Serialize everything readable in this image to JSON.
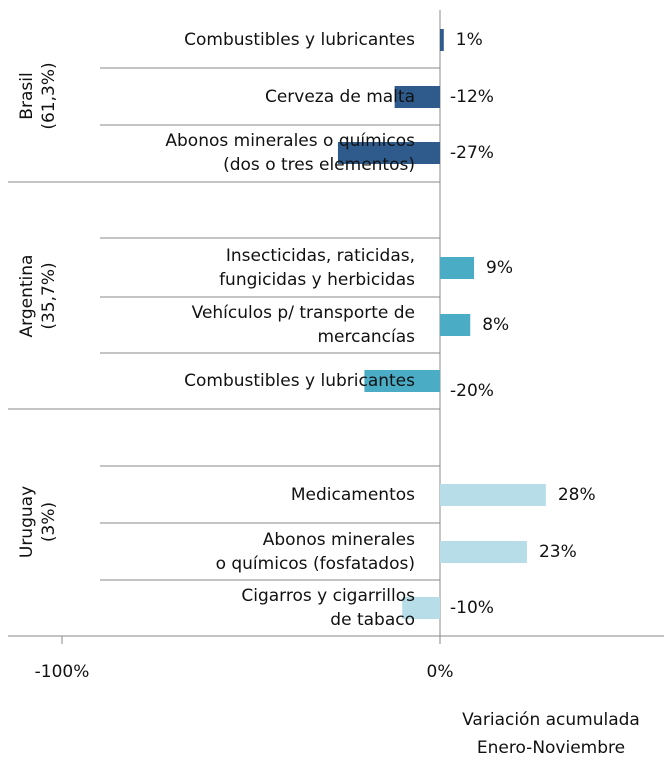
{
  "chart_data": {
    "type": "bar",
    "orientation": "horizontal",
    "xlabel": [
      "Variación acumulada",
      "Enero-Noviembre"
    ],
    "xlim": [
      -100,
      59
    ],
    "xticks": [
      {
        "value": -100,
        "label": "-100%"
      },
      {
        "value": 0,
        "label": "0%"
      }
    ],
    "series": [
      {
        "name": [
          "Brasil",
          "(61,3%)"
        ],
        "color": "#2f5b8c",
        "categories": [
          [
            "Combustibles y lubricantes"
          ],
          [
            "Cerveza de malta"
          ],
          [
            "Abonos minerales o químicos",
            "(dos o tres elementos)"
          ]
        ],
        "values": [
          1,
          -12,
          -27
        ],
        "value_labels": [
          "1%",
          "-12%",
          "-27%"
        ]
      },
      {
        "name": [
          "Argentina",
          "(35,7%)"
        ],
        "color": "#4bacc6",
        "categories": [
          [
            "Insecticidas, raticidas,",
            "fungicidas y herbicidas"
          ],
          [
            "Vehículos p/ transporte de",
            "mercancías"
          ],
          [
            "Combustibles y lubricantes"
          ]
        ],
        "values": [
          9,
          8,
          -20
        ],
        "value_labels": [
          "9%",
          "8%",
          "-20%"
        ]
      },
      {
        "name": [
          "Uruguay",
          "(3%)"
        ],
        "color": "#b7dde8",
        "categories": [
          [
            "Medicamentos"
          ],
          [
            "Abonos minerales",
            "o químicos (fosfatados)"
          ],
          [
            "Cigarros y cigarrillos",
            "de tabaco"
          ]
        ],
        "values": [
          28,
          23,
          -10
        ],
        "value_labels": [
          "28%",
          "23%",
          "-10%"
        ]
      }
    ]
  }
}
